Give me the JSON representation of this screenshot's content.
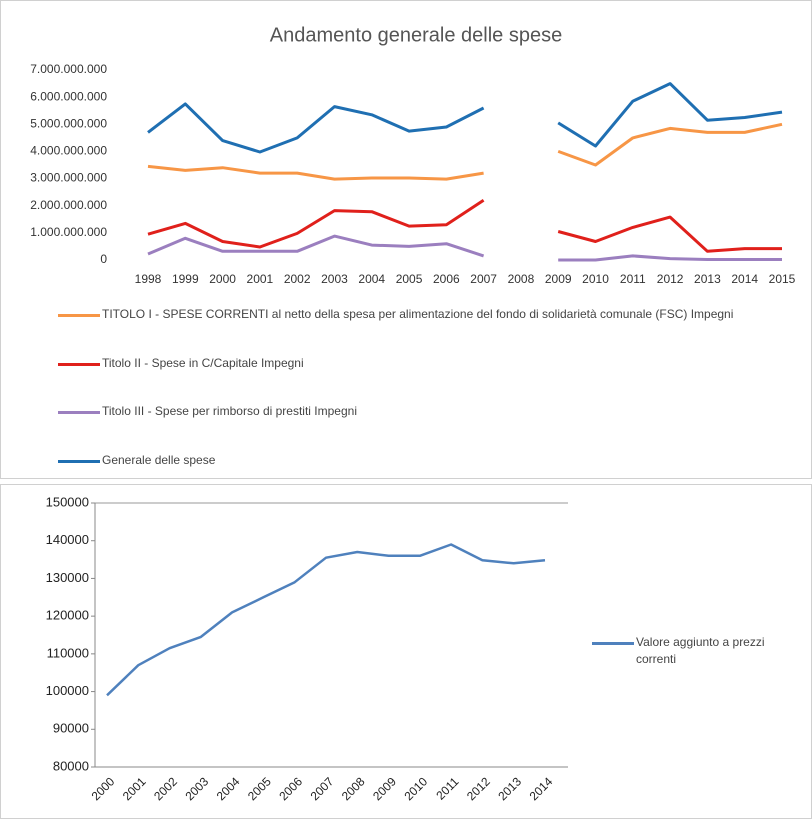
{
  "chart_data": [
    {
      "type": "line",
      "title": "Andamento generale delle spese",
      "categories": [
        "1998",
        "1999",
        "2000",
        "2001",
        "2002",
        "2003",
        "2004",
        "2005",
        "2006",
        "2007",
        "2008",
        "2009",
        "2010",
        "2011",
        "2012",
        "2013",
        "2014",
        "2015"
      ],
      "ylim": [
        0,
        7000000000
      ],
      "yticks": [
        0,
        {
          "value": 1000000000,
          "label": "1.000.000.000"
        },
        {
          "value": 2000000000,
          "label": "2.000.000.000"
        },
        {
          "value": 3000000000,
          "label": "3.000.000.000"
        },
        {
          "value": 4000000000,
          "label": "4.000.000.000"
        },
        {
          "value": 5000000000,
          "label": "5.000.000.000"
        },
        {
          "value": 6000000000,
          "label": "6.000.000.000"
        },
        {
          "value": 7000000000,
          "label": "7.000.000.000"
        }
      ],
      "grid": false,
      "series": [
        {
          "name": "TITOLO I - SPESE CORRENTI al netto della spesa per alimentazione del fondo di solidarietà comunale (FSC) Impegni",
          "color": "#f79646",
          "values": [
            3450000000,
            3300000000,
            3400000000,
            3200000000,
            3200000000,
            2980000000,
            3020000000,
            3020000000,
            2980000000,
            3200000000,
            null,
            4000000000,
            3500000000,
            4500000000,
            4850000000,
            4700000000,
            4700000000,
            5000000000
          ]
        },
        {
          "name": "Titolo II - Spese in C/Capitale Impegni",
          "color": "#e0201b",
          "values": [
            950000000,
            1350000000,
            680000000,
            480000000,
            980000000,
            1820000000,
            1780000000,
            1250000000,
            1300000000,
            2200000000,
            null,
            1050000000,
            680000000,
            1200000000,
            1580000000,
            320000000,
            420000000,
            420000000
          ]
        },
        {
          "name": "Titolo III - Spese per rimborso di prestiti Impegni",
          "color": "#9b7fbf",
          "values": [
            220000000,
            800000000,
            320000000,
            320000000,
            320000000,
            880000000,
            550000000,
            500000000,
            600000000,
            150000000,
            null,
            0,
            0,
            150000000,
            50000000,
            20000000,
            20000000,
            20000000
          ]
        },
        {
          "name": "Generale delle spese",
          "color": "#1f6fb2",
          "values": [
            4700000000,
            5750000000,
            4400000000,
            3980000000,
            4500000000,
            5650000000,
            5350000000,
            4750000000,
            4900000000,
            5600000000,
            null,
            5050000000,
            4200000000,
            5850000000,
            6500000000,
            5150000000,
            5250000000,
            5450000000
          ]
        }
      ]
    },
    {
      "type": "line",
      "categories": [
        "2000",
        "2001",
        "2002",
        "2003",
        "2004",
        "2005",
        "2006",
        "2007",
        "2008",
        "2009",
        "2010",
        "2011",
        "2012",
        "2013",
        "2014"
      ],
      "ylim": [
        80000,
        150000
      ],
      "yticks": [
        80000,
        90000,
        100000,
        110000,
        120000,
        130000,
        140000,
        150000
      ],
      "grid": false,
      "series": [
        {
          "name": "Valore aggiunto a prezzi correnti",
          "color": "#4f81bd",
          "values": [
            99000,
            107000,
            111500,
            114500,
            121000,
            125000,
            129000,
            135500,
            137000,
            136000,
            136000,
            139000,
            134800,
            134000,
            134800
          ]
        }
      ]
    }
  ]
}
